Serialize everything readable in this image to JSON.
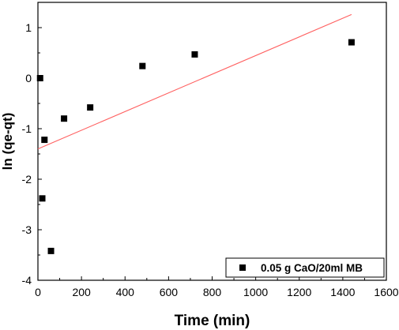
{
  "chart_data": {
    "type": "scatter",
    "xlabel": "Time (min)",
    "ylabel": "ln (qe-qt)",
    "xlim": [
      0,
      1600
    ],
    "ylim": [
      -4,
      1.5
    ],
    "xticks": [
      0,
      200,
      400,
      600,
      800,
      1000,
      1200,
      1400,
      1600
    ],
    "yticks": [
      -4,
      -3,
      -2,
      -1,
      0,
      1
    ],
    "grid": false,
    "legend_position": "bottom-right",
    "series": [
      {
        "name": "0.05 g CaO/20ml MB",
        "marker": "square",
        "color": "#000000",
        "points": [
          {
            "x": 10,
            "y": 0.0
          },
          {
            "x": 20,
            "y": -2.38
          },
          {
            "x": 30,
            "y": -1.22
          },
          {
            "x": 60,
            "y": -3.42
          },
          {
            "x": 120,
            "y": -0.8
          },
          {
            "x": 240,
            "y": -0.58
          },
          {
            "x": 480,
            "y": 0.24
          },
          {
            "x": 720,
            "y": 0.47
          },
          {
            "x": 1440,
            "y": 0.71
          }
        ]
      }
    ],
    "fit_line": {
      "color": "#ff6060",
      "x": [
        0,
        1440
      ],
      "y": [
        -1.4,
        1.26
      ]
    }
  }
}
